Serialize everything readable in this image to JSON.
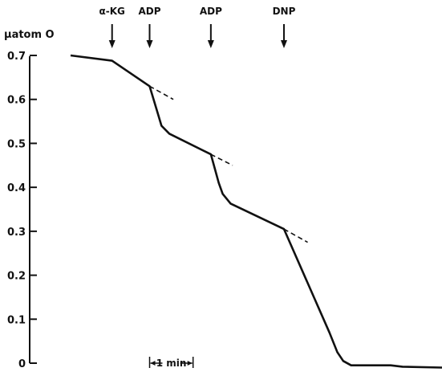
{
  "chart_data": {
    "type": "line",
    "ylabel": "μatom O",
    "ylim": [
      0,
      0.7
    ],
    "y_ticks": [
      {
        "value": 0,
        "label": "0"
      },
      {
        "value": 0.1,
        "label": "0.1"
      },
      {
        "value": 0.2,
        "label": "0.2"
      },
      {
        "value": 0.3,
        "label": "0.3"
      },
      {
        "value": 0.4,
        "label": "0.4"
      },
      {
        "value": 0.5,
        "label": "0.5"
      },
      {
        "value": 0.6,
        "label": "0.6"
      },
      {
        "value": 0.7,
        "label": "0.7"
      }
    ],
    "x_unit": "min",
    "xlim": [
      0,
      9.4
    ],
    "x_scale_bar": {
      "label": "1 min",
      "start": 2.0,
      "end": 3.1
    },
    "series": [
      {
        "x": [
          0,
          1.05,
          2.0,
          2.2,
          2.3,
          2.5,
          3.55,
          3.75,
          3.85,
          4.05,
          5.4,
          6.55,
          6.75,
          6.9,
          7.1,
          8.1,
          8.4,
          9.4
        ],
        "y": [
          0.7,
          0.688,
          0.63,
          0.57,
          0.54,
          0.522,
          0.475,
          0.41,
          0.385,
          0.363,
          0.305,
          0.07,
          0.025,
          0.005,
          -0.005,
          -0.005,
          -0.008,
          -0.01
        ]
      }
    ],
    "extrapolations": [
      {
        "x": [
          2.0,
          2.6
        ],
        "y": [
          0.63,
          0.6
        ]
      },
      {
        "x": [
          3.55,
          4.1
        ],
        "y": [
          0.475,
          0.45
        ]
      },
      {
        "x": [
          5.4,
          6.0
        ],
        "y": [
          0.305,
          0.275
        ]
      }
    ],
    "annotations": [
      {
        "label": "α-KG",
        "x": 1.05
      },
      {
        "label": "ADP",
        "x": 2.0
      },
      {
        "label": "ADP",
        "x": 3.55
      },
      {
        "label": "DNP",
        "x": 5.4
      }
    ]
  }
}
